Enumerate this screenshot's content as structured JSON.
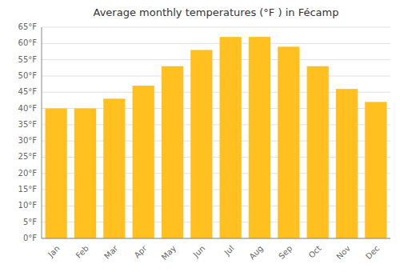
{
  "chart_data": {
    "type": "bar",
    "title": "Average monthly temperatures (°F ) in Fécamp",
    "categories": [
      "Jan",
      "Feb",
      "Mar",
      "Apr",
      "May",
      "Jun",
      "Jul",
      "Aug",
      "Sep",
      "Oct",
      "Nov",
      "Dec"
    ],
    "values": [
      40,
      40,
      43,
      47,
      53,
      58,
      62,
      62,
      59,
      53,
      46,
      42
    ],
    "color": "#FFC020",
    "ylim": [
      0,
      65
    ],
    "yticks": [
      {
        "value": 0,
        "label": "0°F"
      },
      {
        "value": 5,
        "label": "5°F"
      },
      {
        "value": 10,
        "label": "10°F"
      },
      {
        "value": 15,
        "label": "15°F"
      },
      {
        "value": 20,
        "label": "20°F"
      },
      {
        "value": 25,
        "label": "25°F"
      },
      {
        "value": 30,
        "label": "30°F"
      },
      {
        "value": 35,
        "label": "35°F"
      },
      {
        "value": 40,
        "label": "40°F"
      },
      {
        "value": 45,
        "label": "45°F"
      },
      {
        "value": 50,
        "label": "50°F"
      },
      {
        "value": 55,
        "label": "55°F"
      },
      {
        "value": 60,
        "label": "60°F"
      },
      {
        "value": 65,
        "label": "65°F"
      }
    ],
    "grid": true
  }
}
